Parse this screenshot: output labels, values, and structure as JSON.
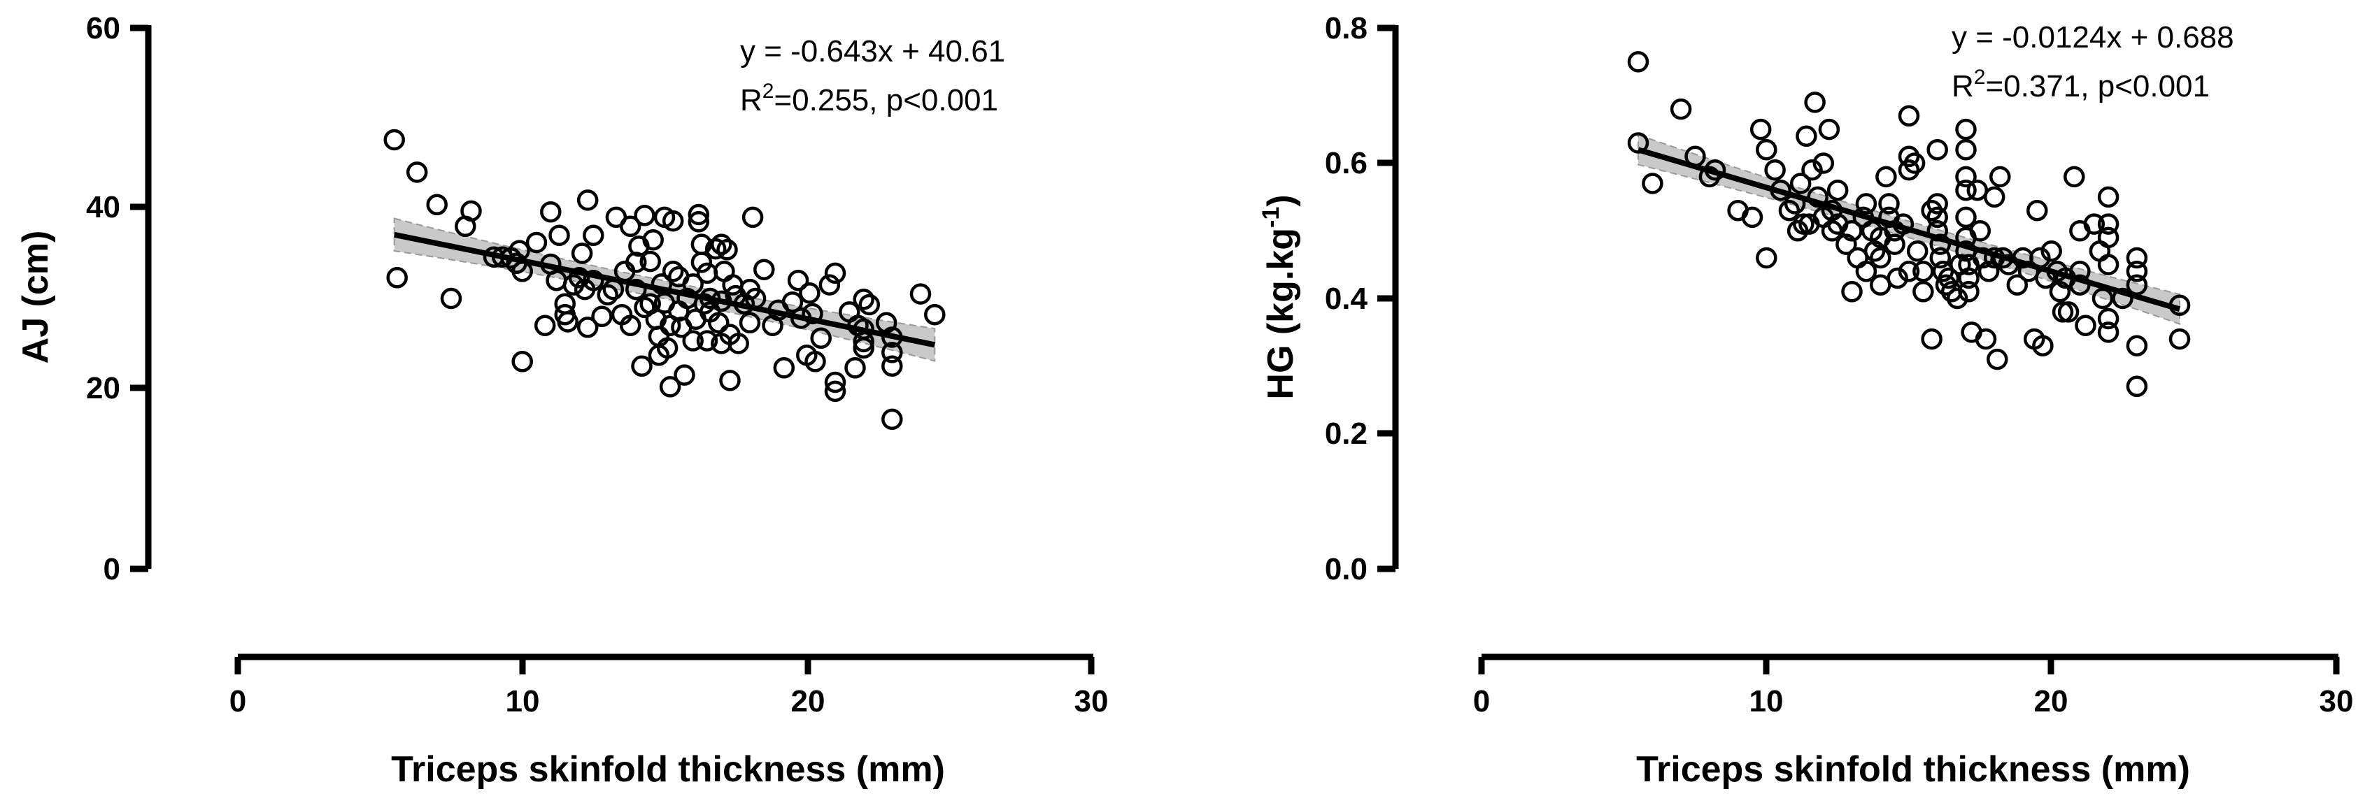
{
  "chart_data": [
    {
      "type": "scatter",
      "xlabel": "Triceps skinfold thickness (mm)",
      "ylabel": "AJ (cm)",
      "xlim": [
        0,
        30
      ],
      "ylim": [
        0,
        60
      ],
      "xticks": [
        "0",
        "10",
        "20",
        "30"
      ],
      "yticks": [
        "0",
        "20",
        "40",
        "60"
      ],
      "equation": "y = -0.643x + 40.61",
      "r2_prefix": "R",
      "r2_sup": "2",
      "r2_rest": "=0.255, p<0.001",
      "fit": {
        "slope": -0.643,
        "intercept": 40.61,
        "x_range": [
          5.5,
          24.5
        ],
        "ci_halfwidth": 1.8
      },
      "points": [
        [
          5.5,
          47.6
        ],
        [
          5.6,
          32.3
        ],
        [
          6.3,
          44.0
        ],
        [
          7.0,
          40.4
        ],
        [
          7.5,
          30.0
        ],
        [
          8.0,
          38.0
        ],
        [
          8.2,
          39.7
        ],
        [
          9.0,
          34.6
        ],
        [
          9.3,
          34.6
        ],
        [
          9.6,
          34.5
        ],
        [
          9.8,
          33.9
        ],
        [
          9.9,
          35.3
        ],
        [
          10.0,
          33.0
        ],
        [
          10.0,
          23.0
        ],
        [
          10.5,
          36.2
        ],
        [
          10.8,
          27.0
        ],
        [
          11.0,
          39.6
        ],
        [
          11.0,
          33.8
        ],
        [
          11.2,
          32.0
        ],
        [
          11.3,
          37.0
        ],
        [
          11.5,
          28.2
        ],
        [
          11.5,
          29.4
        ],
        [
          11.6,
          27.4
        ],
        [
          11.8,
          31.5
        ],
        [
          12.0,
          32.3
        ],
        [
          12.1,
          35.0
        ],
        [
          12.2,
          31.0
        ],
        [
          12.3,
          40.9
        ],
        [
          12.3,
          26.8
        ],
        [
          12.5,
          37.0
        ],
        [
          12.5,
          32.0
        ],
        [
          12.8,
          28.0
        ],
        [
          13.0,
          30.4
        ],
        [
          13.2,
          31.0
        ],
        [
          13.3,
          39.0
        ],
        [
          13.5,
          28.2
        ],
        [
          13.6,
          33.0
        ],
        [
          13.8,
          38.0
        ],
        [
          13.8,
          27.0
        ],
        [
          14.0,
          34.0
        ],
        [
          14.0,
          31.0
        ],
        [
          14.1,
          35.8
        ],
        [
          14.2,
          22.5
        ],
        [
          14.3,
          29.0
        ],
        [
          14.3,
          39.2
        ],
        [
          14.5,
          29.4
        ],
        [
          14.5,
          34.1
        ],
        [
          14.6,
          36.5
        ],
        [
          14.7,
          27.7
        ],
        [
          14.8,
          25.8
        ],
        [
          14.8,
          23.7
        ],
        [
          14.9,
          31.6
        ],
        [
          15.0,
          29.5
        ],
        [
          15.0,
          39.0
        ],
        [
          15.1,
          24.5
        ],
        [
          15.2,
          27.0
        ],
        [
          15.2,
          20.2
        ],
        [
          15.3,
          33.0
        ],
        [
          15.3,
          38.6
        ],
        [
          15.5,
          32.4
        ],
        [
          15.5,
          28.6
        ],
        [
          15.6,
          26.8
        ],
        [
          15.7,
          21.5
        ],
        [
          15.8,
          30.0
        ],
        [
          16.0,
          31.6
        ],
        [
          16.0,
          25.3
        ],
        [
          16.1,
          27.7
        ],
        [
          16.2,
          39.3
        ],
        [
          16.2,
          38.5
        ],
        [
          16.3,
          36.0
        ],
        [
          16.3,
          34.0
        ],
        [
          16.4,
          29.4
        ],
        [
          16.5,
          25.3
        ],
        [
          16.5,
          32.8
        ],
        [
          16.6,
          30.0
        ],
        [
          16.6,
          28.5
        ],
        [
          16.8,
          35.5
        ],
        [
          16.9,
          27.3
        ],
        [
          17.0,
          29.7
        ],
        [
          17.0,
          36.0
        ],
        [
          17.0,
          25.0
        ],
        [
          17.1,
          33.0
        ],
        [
          17.2,
          35.4
        ],
        [
          17.3,
          20.9
        ],
        [
          17.3,
          26.0
        ],
        [
          17.4,
          31.5
        ],
        [
          17.5,
          30.3
        ],
        [
          17.6,
          25.0
        ],
        [
          17.8,
          29.4
        ],
        [
          18.0,
          31.0
        ],
        [
          18.0,
          27.3
        ],
        [
          18.1,
          39.0
        ],
        [
          18.2,
          30.0
        ],
        [
          18.5,
          33.2
        ],
        [
          18.8,
          27.0
        ],
        [
          19.0,
          28.7
        ],
        [
          19.2,
          22.3
        ],
        [
          19.5,
          29.6
        ],
        [
          19.7,
          32.0
        ],
        [
          19.8,
          27.8
        ],
        [
          20.0,
          23.7
        ],
        [
          20.1,
          30.6
        ],
        [
          20.2,
          28.3
        ],
        [
          20.3,
          23.0
        ],
        [
          20.5,
          25.6
        ],
        [
          20.8,
          31.5
        ],
        [
          21.0,
          20.7
        ],
        [
          21.0,
          19.7
        ],
        [
          21.0,
          32.8
        ],
        [
          21.5,
          28.5
        ],
        [
          21.7,
          22.3
        ],
        [
          21.8,
          27.0
        ],
        [
          22.0,
          26.6
        ],
        [
          22.0,
          29.9
        ],
        [
          22.0,
          25.2
        ],
        [
          22.0,
          24.5
        ],
        [
          22.2,
          29.3
        ],
        [
          22.8,
          27.3
        ],
        [
          23.0,
          25.7
        ],
        [
          23.0,
          24.0
        ],
        [
          23.0,
          22.5
        ],
        [
          23.0,
          16.6
        ],
        [
          24.0,
          30.5
        ],
        [
          24.5,
          28.2
        ]
      ]
    },
    {
      "type": "scatter",
      "xlabel": "Triceps skinfold thickness (mm)",
      "ylabel_main": "HG (kg.kg",
      "ylabel_sup": "-1",
      "ylabel_end": ")",
      "xlim": [
        0,
        30
      ],
      "ylim": [
        0,
        0.8
      ],
      "xticks": [
        "0",
        "10",
        "20",
        "30"
      ],
      "yticks": [
        "0.0",
        "0.2",
        "0.4",
        "0.6",
        "0.8"
      ],
      "equation": "y = -0.0124x + 0.688",
      "r2_prefix": "R",
      "r2_sup": "2",
      "r2_rest": "=0.371, p<0.001",
      "fit": {
        "slope": -0.0124,
        "intercept": 0.688,
        "x_range": [
          5.5,
          24.5
        ],
        "ci_halfwidth": 0.022
      },
      "points": [
        [
          5.5,
          0.75
        ],
        [
          5.5,
          0.63
        ],
        [
          6.0,
          0.57
        ],
        [
          7.0,
          0.68
        ],
        [
          7.5,
          0.61
        ],
        [
          8.0,
          0.58
        ],
        [
          8.2,
          0.59
        ],
        [
          9.0,
          0.53
        ],
        [
          9.5,
          0.52
        ],
        [
          9.8,
          0.65
        ],
        [
          10.0,
          0.62
        ],
        [
          10.0,
          0.46
        ],
        [
          10.3,
          0.59
        ],
        [
          10.5,
          0.56
        ],
        [
          10.8,
          0.53
        ],
        [
          11.0,
          0.54
        ],
        [
          11.1,
          0.5
        ],
        [
          11.2,
          0.57
        ],
        [
          11.3,
          0.51
        ],
        [
          11.4,
          0.64
        ],
        [
          11.5,
          0.51
        ],
        [
          11.6,
          0.59
        ],
        [
          11.7,
          0.69
        ],
        [
          11.8,
          0.55
        ],
        [
          12.0,
          0.6
        ],
        [
          12.0,
          0.52
        ],
        [
          12.2,
          0.65
        ],
        [
          12.3,
          0.53
        ],
        [
          12.3,
          0.5
        ],
        [
          12.5,
          0.56
        ],
        [
          12.5,
          0.51
        ],
        [
          12.8,
          0.48
        ],
        [
          13.0,
          0.41
        ],
        [
          13.0,
          0.5
        ],
        [
          13.2,
          0.46
        ],
        [
          13.4,
          0.52
        ],
        [
          13.5,
          0.54
        ],
        [
          13.5,
          0.44
        ],
        [
          13.7,
          0.5
        ],
        [
          13.8,
          0.47
        ],
        [
          14.0,
          0.49
        ],
        [
          14.0,
          0.46
        ],
        [
          14.0,
          0.42
        ],
        [
          14.2,
          0.58
        ],
        [
          14.3,
          0.54
        ],
        [
          14.3,
          0.52
        ],
        [
          14.5,
          0.5
        ],
        [
          14.5,
          0.48
        ],
        [
          14.6,
          0.43
        ],
        [
          14.8,
          0.51
        ],
        [
          15.0,
          0.67
        ],
        [
          15.0,
          0.61
        ],
        [
          15.0,
          0.59
        ],
        [
          15.0,
          0.44
        ],
        [
          15.2,
          0.6
        ],
        [
          15.3,
          0.47
        ],
        [
          15.5,
          0.44
        ],
        [
          15.5,
          0.41
        ],
        [
          15.8,
          0.53
        ],
        [
          15.8,
          0.34
        ],
        [
          16.0,
          0.62
        ],
        [
          16.0,
          0.54
        ],
        [
          16.0,
          0.52
        ],
        [
          16.0,
          0.5
        ],
        [
          16.1,
          0.48
        ],
        [
          16.1,
          0.46
        ],
        [
          16.2,
          0.44
        ],
        [
          16.3,
          0.42
        ],
        [
          16.4,
          0.43
        ],
        [
          16.5,
          0.41
        ],
        [
          16.7,
          0.4
        ],
        [
          16.8,
          0.45
        ],
        [
          17.0,
          0.65
        ],
        [
          17.0,
          0.62
        ],
        [
          17.0,
          0.58
        ],
        [
          17.0,
          0.56
        ],
        [
          17.0,
          0.52
        ],
        [
          17.0,
          0.49
        ],
        [
          17.0,
          0.47
        ],
        [
          17.1,
          0.45
        ],
        [
          17.1,
          0.43
        ],
        [
          17.1,
          0.41
        ],
        [
          17.2,
          0.35
        ],
        [
          17.4,
          0.56
        ],
        [
          17.5,
          0.5
        ],
        [
          17.6,
          0.46
        ],
        [
          17.7,
          0.34
        ],
        [
          17.8,
          0.44
        ],
        [
          18.0,
          0.55
        ],
        [
          18.0,
          0.46
        ],
        [
          18.1,
          0.31
        ],
        [
          18.2,
          0.58
        ],
        [
          18.3,
          0.46
        ],
        [
          18.5,
          0.45
        ],
        [
          18.8,
          0.42
        ],
        [
          19.0,
          0.46
        ],
        [
          19.2,
          0.44
        ],
        [
          19.4,
          0.34
        ],
        [
          19.5,
          0.53
        ],
        [
          19.6,
          0.46
        ],
        [
          19.7,
          0.33
        ],
        [
          19.8,
          0.43
        ],
        [
          20.0,
          0.47
        ],
        [
          20.2,
          0.44
        ],
        [
          20.3,
          0.41
        ],
        [
          20.4,
          0.38
        ],
        [
          20.5,
          0.43
        ],
        [
          20.6,
          0.38
        ],
        [
          20.8,
          0.58
        ],
        [
          21.0,
          0.5
        ],
        [
          21.0,
          0.44
        ],
        [
          21.0,
          0.42
        ],
        [
          21.2,
          0.36
        ],
        [
          21.5,
          0.51
        ],
        [
          21.7,
          0.47
        ],
        [
          21.8,
          0.4
        ],
        [
          22.0,
          0.55
        ],
        [
          22.0,
          0.51
        ],
        [
          22.0,
          0.49
        ],
        [
          22.0,
          0.45
        ],
        [
          22.0,
          0.35
        ],
        [
          22.0,
          0.37
        ],
        [
          22.5,
          0.4
        ],
        [
          23.0,
          0.46
        ],
        [
          23.0,
          0.44
        ],
        [
          23.0,
          0.42
        ],
        [
          23.0,
          0.33
        ],
        [
          23.0,
          0.27
        ],
        [
          24.5,
          0.39
        ],
        [
          24.5,
          0.34
        ]
      ]
    }
  ]
}
